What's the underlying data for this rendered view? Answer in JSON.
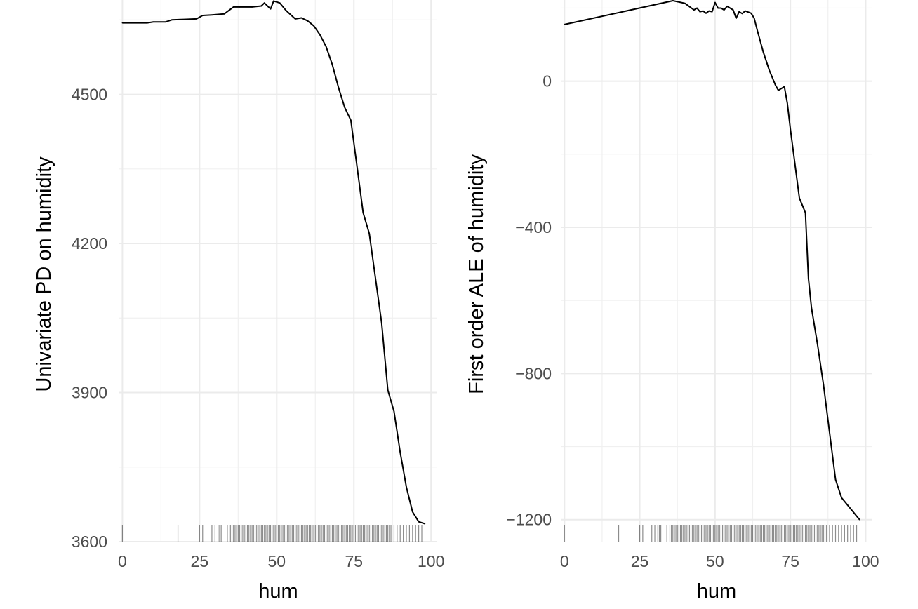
{
  "chart_data": [
    {
      "type": "line",
      "panel": "left",
      "xlabel": "hum",
      "ylabel": "Univariate PD on humidity",
      "xlim": [
        -1,
        102
      ],
      "ylim": [
        3600,
        4690
      ],
      "x_ticks": [
        0,
        25,
        50,
        75,
        100
      ],
      "y_ticks": [
        3600,
        3900,
        4200,
        4500
      ],
      "x_tick_labels": [
        "0",
        "25",
        "50",
        "75",
        "100"
      ],
      "y_tick_labels": [
        "3600",
        "3900",
        "4200",
        "4500"
      ],
      "grid": true,
      "line_color": "#000000",
      "x": [
        0,
        8,
        10,
        14,
        16,
        20,
        24,
        26,
        29,
        33,
        36,
        38,
        42,
        45,
        46,
        48,
        49,
        51,
        53,
        56,
        58,
        60,
        62,
        64,
        66,
        68,
        70,
        72,
        74,
        76,
        78,
        80,
        82,
        84,
        86,
        88,
        90,
        92,
        94,
        96,
        98
      ],
      "values": [
        4644,
        4644,
        4646,
        4646,
        4650,
        4651,
        4652,
        4659,
        4660,
        4662,
        4676,
        4676,
        4676,
        4678,
        4684,
        4672,
        4688,
        4684,
        4669,
        4652,
        4654,
        4648,
        4638,
        4620,
        4596,
        4560,
        4514,
        4474,
        4448,
        4355,
        4262,
        4220,
        4130,
        4040,
        3905,
        3862,
        3780,
        3710,
        3660,
        3640,
        3636
      ],
      "rug": [
        0,
        18,
        25,
        26,
        29,
        30,
        31,
        31.5,
        32,
        34,
        35,
        35.5,
        36,
        36.5,
        37,
        37.5,
        38,
        38.5,
        39,
        39.5,
        40,
        40.5,
        41,
        41.5,
        42,
        42.5,
        43,
        43.5,
        44,
        44.5,
        45,
        45.5,
        46,
        46.5,
        47,
        47.5,
        48,
        48.5,
        49,
        49.5,
        50,
        50.5,
        51,
        51.5,
        52,
        52.5,
        53,
        53.5,
        54,
        54.5,
        55,
        55.5,
        56,
        56.5,
        57,
        57.5,
        58,
        58.5,
        59,
        59.5,
        60,
        60.5,
        61,
        61.5,
        62,
        62.5,
        63,
        63.5,
        64,
        64.5,
        65,
        65.5,
        66,
        66.5,
        67,
        67.5,
        68,
        68.5,
        69,
        69.5,
        70,
        70.5,
        71,
        71.5,
        72,
        72.5,
        73,
        73.5,
        74,
        74.5,
        75,
        75.5,
        76,
        76.5,
        77,
        77.5,
        78,
        78.5,
        79,
        79.5,
        80,
        80.5,
        81,
        81.5,
        82,
        82.5,
        83,
        83.5,
        84,
        84.5,
        85,
        85.5,
        86,
        86.5,
        87,
        88,
        89,
        90,
        91,
        92,
        93,
        94,
        95,
        96,
        97
      ]
    },
    {
      "type": "line",
      "panel": "right",
      "xlabel": "hum",
      "ylabel": "First order ALE of humidity",
      "xlim": [
        -1,
        102
      ],
      "ylim": [
        -1260,
        222
      ],
      "x_ticks": [
        0,
        25,
        50,
        75,
        100
      ],
      "y_ticks": [
        -1200,
        -800,
        -400,
        0
      ],
      "x_tick_labels": [
        "0",
        "25",
        "50",
        "75",
        "100"
      ],
      "y_tick_labels": [
        "−1200",
        "−800",
        "−400",
        "0"
      ],
      "grid": true,
      "line_color": "#000000",
      "x": [
        0,
        36,
        40,
        43,
        44,
        45,
        46,
        47,
        48,
        49,
        50,
        51,
        52,
        53,
        54,
        56,
        57,
        58,
        59,
        60,
        62,
        63,
        64,
        66,
        68,
        70,
        71,
        72,
        73,
        74,
        75,
        78,
        80,
        81,
        82,
        84,
        86,
        88,
        90,
        92,
        98
      ],
      "values": [
        155,
        220,
        213,
        195,
        200,
        190,
        192,
        186,
        192,
        190,
        215,
        200,
        200,
        195,
        205,
        195,
        172,
        190,
        185,
        192,
        186,
        172,
        140,
        80,
        30,
        -10,
        -25,
        -20,
        -15,
        -60,
        -130,
        -320,
        -360,
        -540,
        -620,
        -720,
        -830,
        -960,
        -1090,
        -1140,
        -1200
      ],
      "rug": [
        0,
        18,
        25,
        26,
        29,
        30,
        31,
        31.5,
        32,
        34,
        35,
        35.5,
        36,
        36.5,
        37,
        37.5,
        38,
        38.5,
        39,
        39.5,
        40,
        40.5,
        41,
        41.5,
        42,
        42.5,
        43,
        43.5,
        44,
        44.5,
        45,
        45.5,
        46,
        46.5,
        47,
        47.5,
        48,
        48.5,
        49,
        49.5,
        50,
        50.5,
        51,
        51.5,
        52,
        52.5,
        53,
        53.5,
        54,
        54.5,
        55,
        55.5,
        56,
        56.5,
        57,
        57.5,
        58,
        58.5,
        59,
        59.5,
        60,
        60.5,
        61,
        61.5,
        62,
        62.5,
        63,
        63.5,
        64,
        64.5,
        65,
        65.5,
        66,
        66.5,
        67,
        67.5,
        68,
        68.5,
        69,
        69.5,
        70,
        70.5,
        71,
        71.5,
        72,
        72.5,
        73,
        73.5,
        74,
        74.5,
        75,
        75.5,
        76,
        76.5,
        77,
        77.5,
        78,
        78.5,
        79,
        79.5,
        80,
        80.5,
        81,
        81.5,
        82,
        82.5,
        83,
        83.5,
        84,
        84.5,
        85,
        85.5,
        86,
        86.5,
        87,
        88,
        89,
        90,
        91,
        92,
        93,
        94,
        95,
        96,
        97
      ]
    }
  ]
}
